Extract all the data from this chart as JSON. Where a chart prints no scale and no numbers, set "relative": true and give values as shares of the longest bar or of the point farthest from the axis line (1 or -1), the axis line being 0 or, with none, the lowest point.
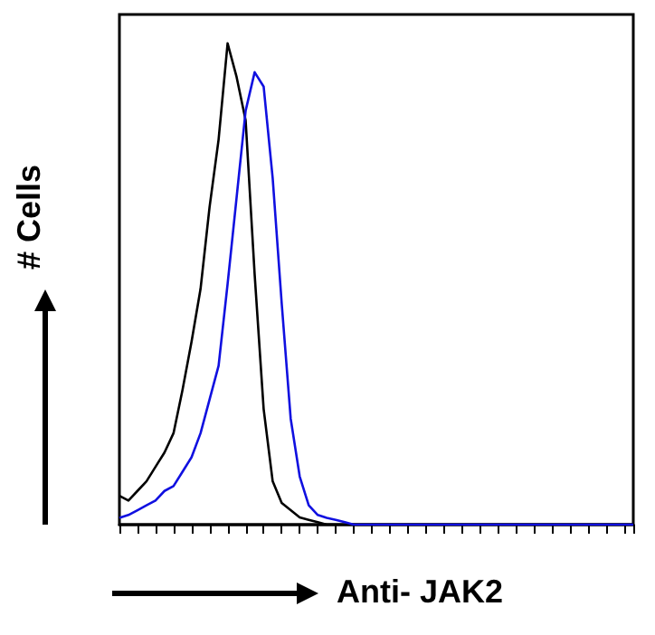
{
  "chart_data": {
    "type": "line",
    "relative": true,
    "xlabel": "Anti- JAK2",
    "ylabel": "# Cells",
    "grid": false,
    "categories": [
      null,
      null,
      null,
      null,
      null,
      null,
      null,
      null,
      null,
      null,
      null,
      null,
      null,
      null,
      null,
      null,
      null,
      null,
      null,
      null,
      null,
      null,
      null,
      null,
      null,
      null,
      null,
      null,
      null,
      null,
      null,
      null,
      null,
      null,
      null,
      null,
      null,
      null,
      null,
      null,
      null,
      null,
      null,
      null,
      null,
      null,
      null,
      null,
      null,
      null,
      null,
      null,
      null,
      null,
      null,
      null,
      null,
      null
    ],
    "series": [
      {
        "color": "#000000",
        "values": [
          0.06,
          0.05,
          0.07,
          0.09,
          0.12,
          0.15,
          0.19,
          0.28,
          0.38,
          0.49,
          0.66,
          0.8,
          1.0,
          0.93,
          0.84,
          0.52,
          0.24,
          0.09,
          0.045,
          0.03,
          0.015,
          0.01,
          0.005,
          0,
          0,
          0,
          0,
          0,
          0,
          0,
          0,
          0,
          0,
          0,
          0,
          0,
          0,
          0,
          0,
          0,
          0,
          0,
          0,
          0,
          0,
          0,
          0,
          0,
          0,
          0,
          0,
          0,
          0,
          0,
          0,
          0,
          0,
          0
        ]
      },
      {
        "color": "#1010e0",
        "values": [
          0.014,
          0.02,
          0.03,
          0.04,
          0.05,
          0.07,
          0.08,
          0.11,
          0.14,
          0.19,
          0.26,
          0.33,
          0.5,
          0.68,
          0.86,
          0.94,
          0.91,
          0.72,
          0.46,
          0.22,
          0.1,
          0.04,
          0.02,
          0.014,
          0.01,
          0.005,
          0,
          0,
          0,
          0,
          0,
          0,
          0,
          0,
          0,
          0,
          0,
          0,
          0,
          0,
          0,
          0,
          0,
          0,
          0,
          0,
          0,
          0,
          0,
          0,
          0,
          0,
          0,
          0,
          0,
          0,
          0,
          0
        ]
      }
    ]
  }
}
